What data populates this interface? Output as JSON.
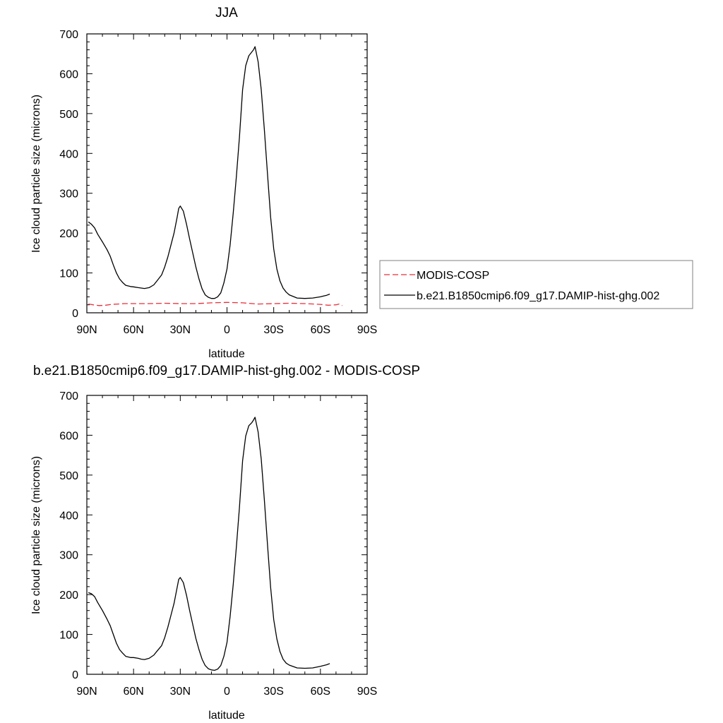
{
  "chart_data": [
    {
      "type": "line",
      "title": "JJA",
      "xlabel": "latitude",
      "ylabel": "Ice cloud particle size (microns)",
      "xlim": [
        90,
        -90
      ],
      "ylim": [
        0,
        700
      ],
      "xticks": [
        90,
        60,
        30,
        0,
        -30,
        -60,
        -90
      ],
      "xtick_labels": [
        "90N",
        "60N",
        "30N",
        "0",
        "30S",
        "60S",
        "90S"
      ],
      "yticks": [
        0,
        100,
        200,
        300,
        400,
        500,
        600,
        700
      ],
      "ytick_labels": [
        "0",
        "100",
        "200",
        "300",
        "400",
        "500",
        "600",
        "700"
      ],
      "legend": {
        "placement": "right"
      },
      "series": [
        {
          "name": "MODIS-COSP",
          "color": "#e8303a",
          "dash": "dashed",
          "x": [
            89,
            86,
            82,
            78,
            74,
            70,
            66,
            60,
            50,
            40,
            30,
            20,
            10,
            0,
            -10,
            -20,
            -30,
            -40,
            -50,
            -60,
            -65,
            -70,
            -72,
            -74
          ],
          "y": [
            22,
            20,
            18,
            19,
            21,
            22,
            23,
            23,
            23,
            24,
            23,
            23,
            25,
            26,
            25,
            22,
            23,
            24,
            23,
            21,
            19,
            20,
            22,
            18
          ]
        },
        {
          "name": "b.e21.B1850cmip6.f09_g17.DAMIP-hist-ghg.002",
          "color": "#000000",
          "dash": "solid",
          "x": [
            89,
            87,
            85,
            83,
            80,
            77,
            75,
            73,
            71,
            69,
            67,
            65,
            62,
            60,
            57,
            55,
            53,
            50,
            47,
            45,
            42,
            40,
            38,
            36,
            34,
            32,
            31,
            30,
            28,
            26,
            24,
            22,
            20,
            18,
            16,
            14,
            12,
            10,
            8,
            6,
            4,
            2,
            0,
            -2,
            -4,
            -6,
            -8,
            -10,
            -12,
            -14,
            -16,
            -17,
            -18,
            -20,
            -22,
            -24,
            -26,
            -28,
            -30,
            -32,
            -34,
            -36,
            -38,
            -40,
            -45,
            -50,
            -55,
            -60,
            -62,
            -64,
            -66
          ],
          "y": [
            228,
            222,
            213,
            197,
            178,
            158,
            142,
            120,
            100,
            85,
            76,
            69,
            66,
            65,
            63,
            62,
            61,
            63,
            70,
            80,
            95,
            115,
            140,
            170,
            200,
            240,
            262,
            268,
            255,
            222,
            185,
            150,
            115,
            85,
            60,
            45,
            39,
            36,
            36,
            40,
            50,
            75,
            110,
            170,
            250,
            340,
            440,
            560,
            620,
            645,
            655,
            660,
            668,
            630,
            560,
            460,
            350,
            240,
            160,
            110,
            80,
            62,
            52,
            45,
            37,
            36,
            37,
            40,
            42,
            44,
            47
          ]
        }
      ]
    },
    {
      "type": "line",
      "title": "b.e21.B1850cmip6.f09_g17.DAMIP-hist-ghg.002 - MODIS-COSP",
      "xlabel": "latitude",
      "ylabel": "Ice cloud particle size (microns)",
      "xlim": [
        90,
        -90
      ],
      "ylim": [
        0,
        700
      ],
      "xticks": [
        90,
        60,
        30,
        0,
        -30,
        -60,
        -90
      ],
      "xtick_labels": [
        "90N",
        "60N",
        "30N",
        "0",
        "30S",
        "60S",
        "90S"
      ],
      "yticks": [
        0,
        100,
        200,
        300,
        400,
        500,
        600,
        700
      ],
      "ytick_labels": [
        "0",
        "100",
        "200",
        "300",
        "400",
        "500",
        "600",
        "700"
      ],
      "series": [
        {
          "color": "#000000",
          "dash": "solid",
          "x": [
            89,
            87,
            85,
            83,
            80,
            77,
            75,
            73,
            71,
            69,
            67,
            65,
            62,
            60,
            57,
            55,
            53,
            50,
            47,
            45,
            42,
            40,
            38,
            36,
            34,
            32,
            31,
            30,
            28,
            26,
            24,
            22,
            20,
            18,
            16,
            14,
            12,
            10,
            8,
            6,
            4,
            2,
            0,
            -2,
            -4,
            -6,
            -8,
            -10,
            -12,
            -14,
            -16,
            -17,
            -18,
            -20,
            -22,
            -24,
            -26,
            -28,
            -30,
            -32,
            -34,
            -36,
            -38,
            -40,
            -45,
            -50,
            -55,
            -60,
            -62,
            -64,
            -66
          ],
          "y": [
            205,
            202,
            195,
            180,
            160,
            138,
            122,
            100,
            78,
            62,
            53,
            45,
            42,
            42,
            40,
            38,
            37,
            40,
            48,
            58,
            72,
            92,
            118,
            148,
            178,
            218,
            238,
            243,
            230,
            198,
            160,
            125,
            90,
            62,
            38,
            22,
            14,
            11,
            10,
            13,
            22,
            45,
            80,
            145,
            225,
            318,
            418,
            536,
            598,
            624,
            632,
            638,
            645,
            608,
            540,
            438,
            327,
            218,
            137,
            89,
            57,
            38,
            28,
            23,
            16,
            15,
            16,
            20,
            22,
            24,
            27
          ]
        }
      ]
    }
  ]
}
